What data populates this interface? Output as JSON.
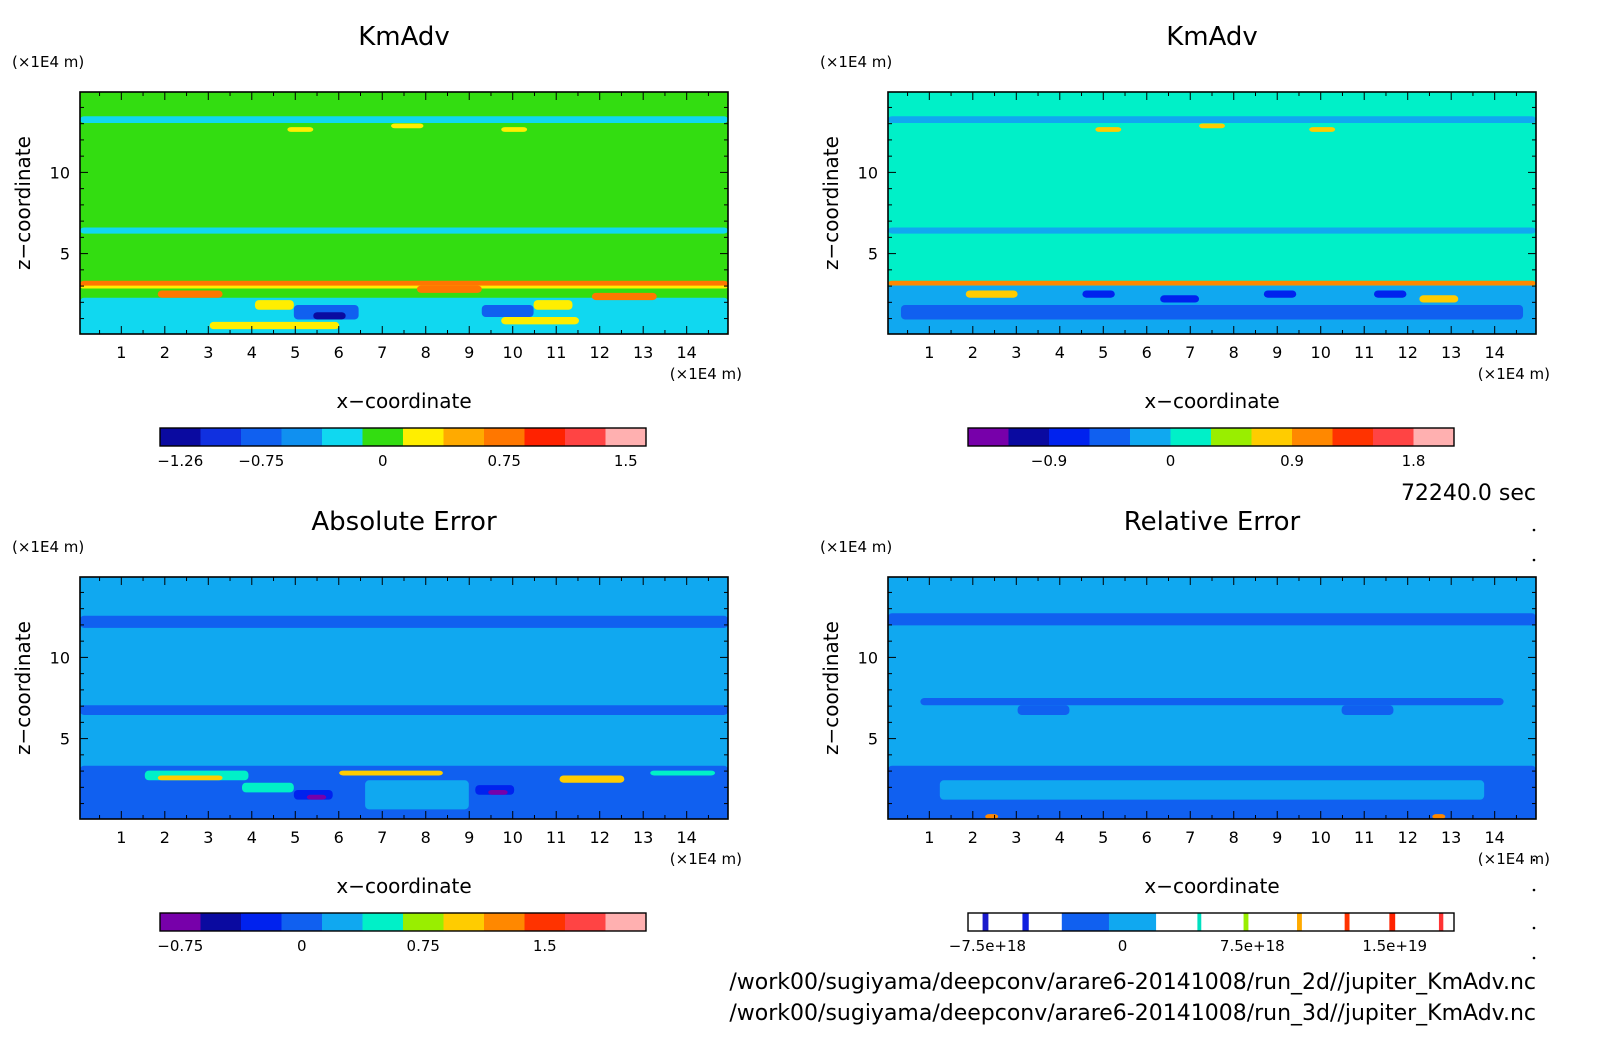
{
  "chart_data": [
    {
      "type": "heatmap",
      "title": "KmAdv",
      "xlabel": "x−coordinate",
      "ylabel": "z−coordinate",
      "x_unit": "(×1E4 m)",
      "y_unit": "(×1E4 m)",
      "xlim": [
        0.05,
        14.95
      ],
      "ylim": [
        0.05,
        14.95
      ],
      "xticks": [
        "1",
        "2",
        "3",
        "4",
        "5",
        "6",
        "7",
        "8",
        "9",
        "10",
        "11",
        "12",
        "13",
        "14"
      ],
      "yticks": [
        "5",
        "10"
      ],
      "background_color": "#33dd11",
      "colorbar": {
        "colors": [
          "#0a0aa0",
          "#1030e0",
          "#1060f0",
          "#1090f0",
          "#10d8f0",
          "#33dd11",
          "#ffee00",
          "#ffaa00",
          "#ff7700",
          "#ff2200",
          "#ff4444",
          "#ffb0b0"
        ],
        "tick_labels": [
          "−1.26",
          "−0.75",
          "0",
          "0.75",
          "1.5"
        ],
        "tick_positions": [
          0.5,
          2.5,
          5.5,
          8.5,
          11.5
        ]
      }
    },
    {
      "type": "heatmap",
      "title": "KmAdv",
      "xlabel": "x−coordinate",
      "ylabel": "z−coordinate",
      "x_unit": "(×1E4 m)",
      "y_unit": "(×1E4 m)",
      "xlim": [
        0.05,
        14.95
      ],
      "ylim": [
        0.05,
        14.95
      ],
      "xticks": [
        "1",
        "2",
        "3",
        "4",
        "5",
        "6",
        "7",
        "8",
        "9",
        "10",
        "11",
        "12",
        "13",
        "14"
      ],
      "yticks": [
        "5",
        "10"
      ],
      "background_color": "#00f0c8",
      "colorbar": {
        "colors": [
          "#7700aa",
          "#0a0aa0",
          "#0022ee",
          "#1060f0",
          "#10a8f0",
          "#00f0c8",
          "#99ee00",
          "#ffcc00",
          "#ff8800",
          "#ff3300",
          "#ff4444",
          "#ffb0b0"
        ],
        "tick_labels": [
          "−0.9",
          "0",
          "0.9",
          "1.8"
        ],
        "tick_positions": [
          2,
          5,
          8,
          11
        ]
      }
    },
    {
      "type": "heatmap",
      "title": "Absolute Error",
      "xlabel": "x−coordinate",
      "ylabel": "z−coordinate",
      "x_unit": "(×1E4 m)",
      "y_unit": "(×1E4 m)",
      "xlim": [
        0.05,
        14.95
      ],
      "ylim": [
        0.05,
        14.95
      ],
      "xticks": [
        "1",
        "2",
        "3",
        "4",
        "5",
        "6",
        "7",
        "8",
        "9",
        "10",
        "11",
        "12",
        "13",
        "14"
      ],
      "yticks": [
        "5",
        "10"
      ],
      "background_color": "#10a8f0",
      "colorbar": {
        "colors": [
          "#7700aa",
          "#0a0aa0",
          "#0022ee",
          "#1060f0",
          "#10a8f0",
          "#00f0c8",
          "#99ee00",
          "#ffcc00",
          "#ff8800",
          "#ff3300",
          "#ff4444",
          "#ffb0b0"
        ],
        "tick_labels": [
          "−0.75",
          "0",
          "0.75",
          "1.5"
        ],
        "tick_positions": [
          0.5,
          3.5,
          6.5,
          9.5
        ]
      }
    },
    {
      "type": "heatmap",
      "title": "Relative Error",
      "xlabel": "x−coordinate",
      "ylabel": "z−coordinate",
      "x_unit": "(×1E4 m)",
      "y_unit": "(×1E4 m)",
      "xlim": [
        0.05,
        14.95
      ],
      "ylim": [
        0.05,
        14.95
      ],
      "xticks": [
        "1",
        "2",
        "3",
        "4",
        "5",
        "6",
        "7",
        "8",
        "9",
        "10",
        "11",
        "12",
        "13",
        "14"
      ],
      "yticks": [
        "5",
        "10"
      ],
      "background_color": "#10a8f0",
      "colorbar": {
        "colors": [
          "#ffffff",
          "#1a1acc",
          "#ffffff",
          "#1020e0",
          "#ffffff",
          "#1060f0",
          "#10a8f0",
          "#ffffff",
          "#00e0c0",
          "#ffffff",
          "#99ee00",
          "#ffffff",
          "#ffaa00",
          "#ffffff",
          "#ff3300",
          "#ffffff",
          "#ff2200",
          "#ffffff",
          "#ff3333",
          "#ffffff"
        ],
        "color_fractions": [
          0.03,
          0.012,
          0.07,
          0.013,
          0.068,
          0.097,
          0.097,
          0.085,
          0.008,
          0.087,
          0.01,
          0.1,
          0.01,
          0.088,
          0.01,
          0.082,
          0.012,
          0.09,
          0.009,
          0.032
        ],
        "tick_labels": [
          "−7.5e+18",
          "0",
          "7.5e+18",
          "1.5e+19"
        ],
        "tick_fractions": [
          0.04,
          0.318,
          0.585,
          0.878
        ]
      }
    }
  ],
  "annotations": {
    "time": "72240.0 sec",
    "file_2d": "/work00/sugiyama/deepconv/arare6-20141008/run_2d//jupiter_KmAdv.nc",
    "file_3d": "/work00/sugiyama/deepconv/arare6-20141008/run_3d//jupiter_KmAdv.nc"
  }
}
